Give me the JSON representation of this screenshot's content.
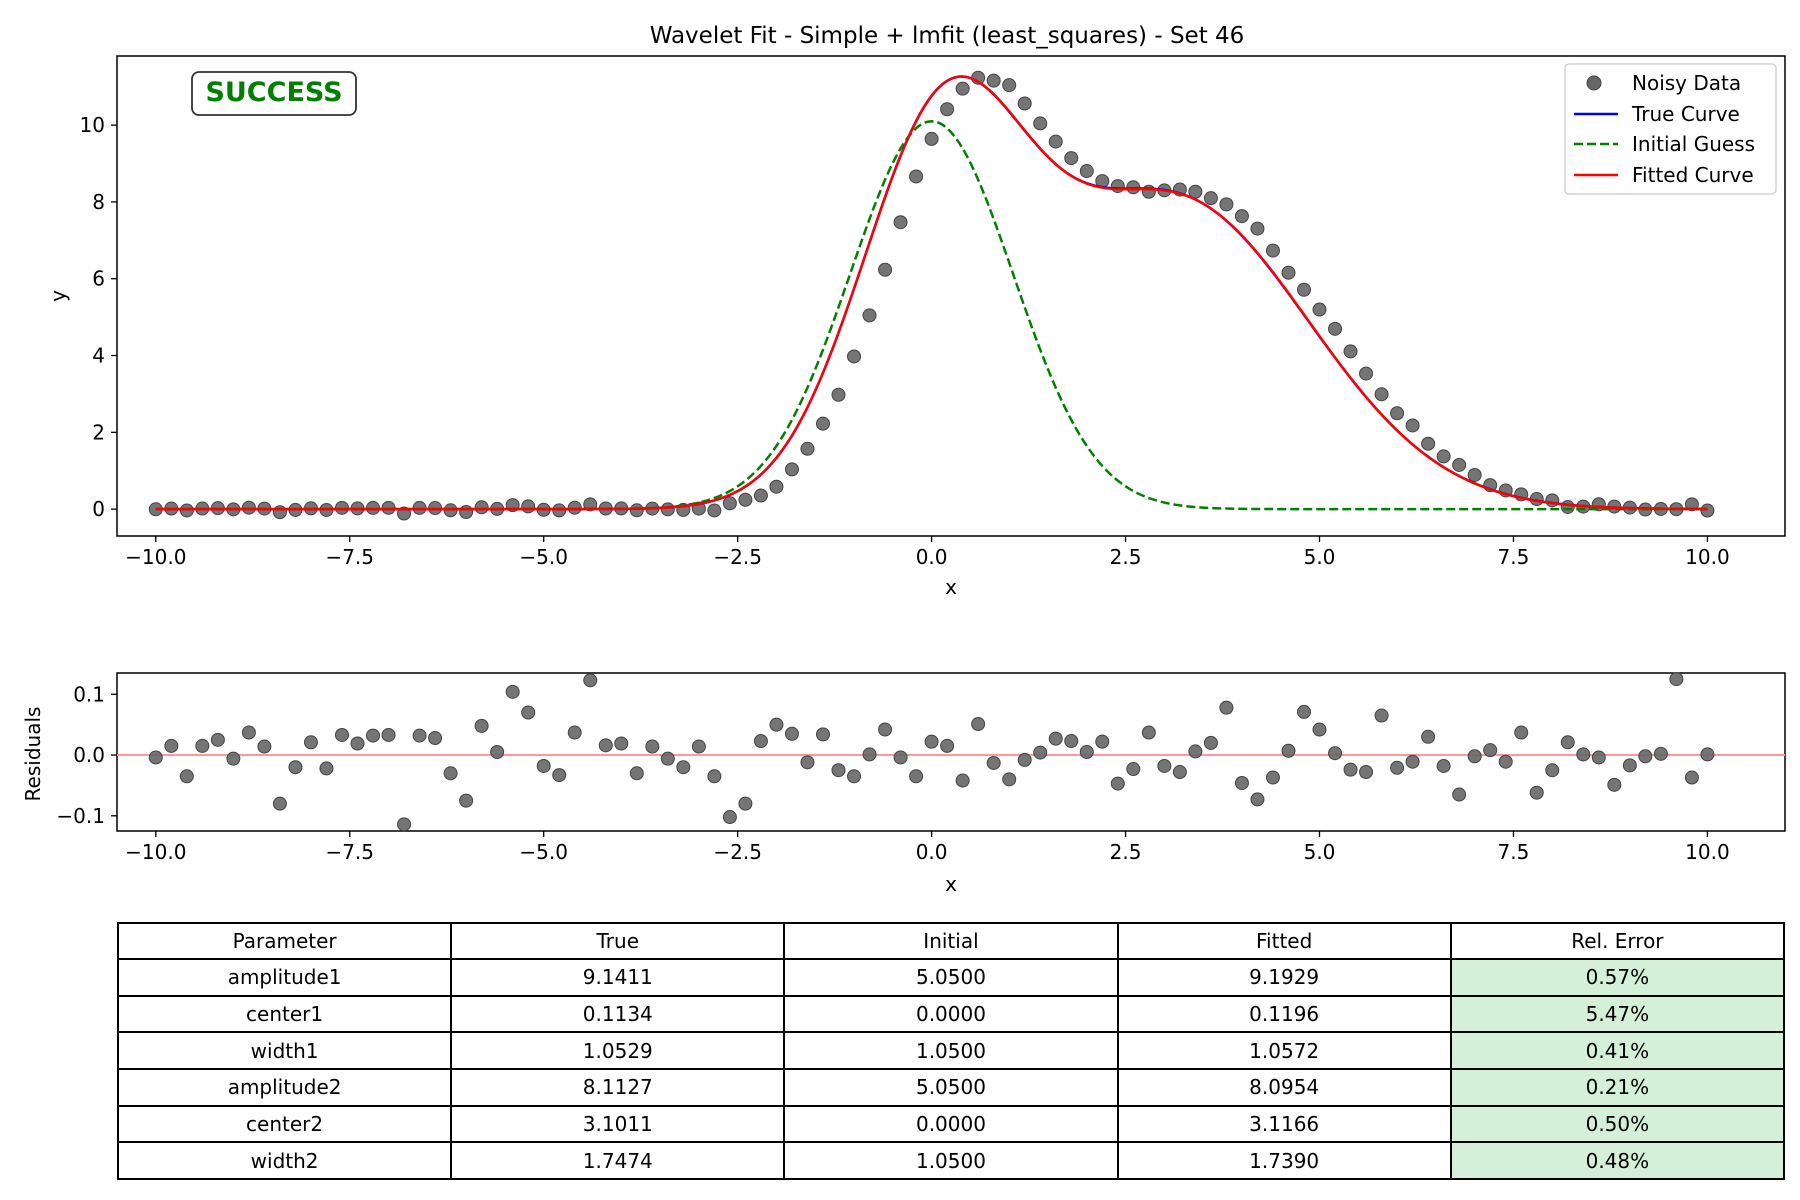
{
  "chart_data": [
    {
      "type": "line",
      "title": "Wavelet Fit - Simple + lmfit (least_squares) - Set 46",
      "xlabel": "x",
      "ylabel": "y",
      "xlim": [
        -10.5,
        11.0
      ],
      "ylim": [
        -0.7,
        11.8
      ],
      "xticks": [
        -10.0,
        -7.5,
        -5.0,
        -2.5,
        0.0,
        2.5,
        5.0,
        7.5,
        10.0
      ],
      "yticks": [
        0,
        2,
        4,
        6,
        8,
        10
      ],
      "grid": false,
      "legend_position": "top-right",
      "status_badge": "SUCCESS",
      "series": [
        {
          "name": "Noisy Data",
          "style": "scatter",
          "color": "#666666",
          "y": [
            -0.004,
            0.015,
            -0.035,
            0.015,
            0.025,
            -0.006,
            0.037,
            0.014,
            -0.08,
            -0.02,
            0.021,
            -0.022,
            0.033,
            0.019,
            0.032,
            0.033,
            -0.114,
            0.032,
            0.028,
            -0.03,
            -0.075,
            0.048,
            0.005,
            0.104,
            0.07,
            -0.018,
            -0.033,
            0.037,
            0.123,
            0.016,
            0.019,
            -0.03,
            0.014,
            -0.006,
            -0.02,
            0.014,
            -0.035,
            0.152,
            0.243,
            0.354,
            0.583,
            1.035,
            1.571,
            2.226,
            2.978,
            3.975,
            5.044,
            6.234,
            7.471,
            8.663,
            9.641,
            10.413,
            10.95,
            11.232,
            11.158,
            11.04,
            10.563,
            10.044,
            9.571,
            9.141,
            8.804,
            8.542,
            8.412,
            8.381,
            8.264,
            8.301,
            8.323,
            8.265,
            8.098,
            7.936,
            7.63,
            7.306,
            6.733,
            6.157,
            5.713,
            5.198,
            4.695,
            4.107,
            3.53,
            2.991,
            2.497,
            2.178,
            1.704,
            1.373,
            1.15,
            0.89,
            0.625,
            0.486,
            0.384,
            0.263,
            0.229,
            0.056,
            0.066,
            0.127,
            0.066,
            0.04,
            -0.01,
            0.004,
            -0.002,
            0.125,
            -0.037
          ]
        },
        {
          "name": "True Curve",
          "style": "line",
          "color": "#0000ff"
        },
        {
          "name": "Initial Guess",
          "style": "dashed",
          "color": "#008000"
        },
        {
          "name": "Fitted Curve",
          "style": "line",
          "color": "#ff0000"
        }
      ],
      "x_start": -10.0,
      "x_end": 10.0,
      "model_params": {
        "true": {
          "amplitude1": 9.1411,
          "center1": 0.1134,
          "width1": 1.0529,
          "amplitude2": 8.1127,
          "center2": 3.1011,
          "width2": 1.7474
        },
        "initial": {
          "amplitude1": 5.05,
          "center1": 0.0,
          "width1": 1.05,
          "amplitude2": 5.05,
          "center2": 0.0,
          "width2": 1.05
        },
        "fitted": {
          "amplitude1": 9.1929,
          "center1": 0.1196,
          "width1": 1.0572,
          "amplitude2": 8.0954,
          "center2": 3.1166,
          "width2": 1.739
        }
      }
    },
    {
      "type": "scatter",
      "title": "",
      "xlabel": "x",
      "ylabel": "Residuals",
      "xlim": [
        -10.5,
        11.0
      ],
      "ylim": [
        -0.125,
        0.135
      ],
      "xticks": [
        -10.0,
        -7.5,
        -5.0,
        -2.5,
        0.0,
        2.5,
        5.0,
        7.5,
        10.0
      ],
      "yticks": [
        -0.1,
        0.0,
        0.1
      ],
      "zero_line_color": "#ff9999",
      "point_color": "#666666",
      "values": [
        -0.004,
        0.015,
        -0.035,
        0.015,
        0.025,
        -0.006,
        0.037,
        0.014,
        -0.08,
        -0.02,
        0.021,
        -0.022,
        0.033,
        0.019,
        0.032,
        0.033,
        -0.114,
        0.032,
        0.028,
        -0.03,
        -0.075,
        0.048,
        0.005,
        0.104,
        0.07,
        -0.018,
        -0.033,
        0.037,
        0.123,
        0.016,
        0.019,
        -0.03,
        0.014,
        -0.006,
        -0.02,
        0.014,
        -0.035,
        -0.102,
        -0.08,
        0.023,
        0.05,
        0.035,
        -0.012,
        0.034,
        -0.025,
        -0.035,
        0.001,
        0.042,
        -0.004,
        -0.035,
        0.022,
        0.015,
        -0.042,
        0.051,
        -0.013,
        -0.04,
        -0.008,
        0.004,
        0.027,
        0.023,
        0.005,
        0.022,
        -0.047,
        -0.023,
        0.037,
        -0.018,
        -0.028,
        0.006,
        0.02,
        0.078,
        -0.046,
        -0.073,
        -0.037,
        0.007,
        0.071,
        0.042,
        0.003,
        -0.024,
        -0.028,
        0.065,
        -0.021,
        -0.011,
        0.03,
        -0.018,
        -0.065,
        -0.002,
        0.008,
        -0.011,
        0.037,
        -0.062,
        -0.025,
        0.021,
        0.001,
        -0.004,
        -0.049,
        -0.017,
        -0.002,
        0.002,
        0.125,
        -0.037,
        0.001
      ]
    }
  ],
  "table": {
    "headers": [
      "Parameter",
      "True",
      "Initial",
      "Fitted",
      "Rel. Error"
    ],
    "rows": [
      [
        "amplitude1",
        "9.1411",
        "5.0500",
        "9.1929",
        "0.57%"
      ],
      [
        "center1",
        "0.1134",
        "0.0000",
        "0.1196",
        "5.47%"
      ],
      [
        "width1",
        "1.0529",
        "1.0500",
        "1.0572",
        "0.41%"
      ],
      [
        "amplitude2",
        "8.1127",
        "5.0500",
        "8.0954",
        "0.21%"
      ],
      [
        "center2",
        "3.1011",
        "0.0000",
        "3.1166",
        "0.50%"
      ],
      [
        "width2",
        "1.7474",
        "1.0500",
        "1.7390",
        "0.48%"
      ]
    ],
    "highlight_color": "#d5f0d9"
  }
}
